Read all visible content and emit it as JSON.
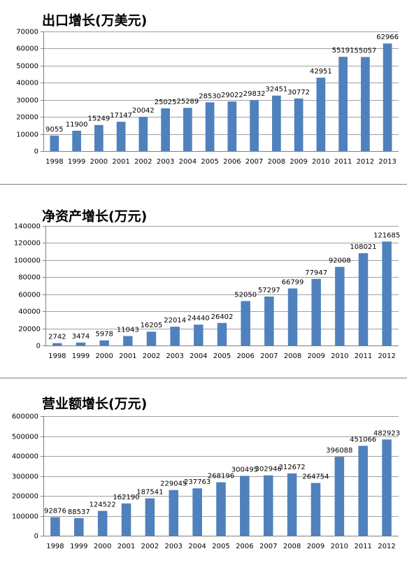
{
  "chart_data": [
    {
      "type": "bar",
      "title": "出口增长(万美元)",
      "color": "#4f81bd",
      "grid": true,
      "categories": [
        "1998",
        "1999",
        "2000",
        "2001",
        "2002",
        "2003",
        "2004",
        "2005",
        "2006",
        "2007",
        "2008",
        "2009",
        "2010",
        "2011",
        "2012",
        "2013"
      ],
      "values": [
        9055,
        11900,
        15249,
        17147,
        20042,
        25025,
        25289,
        28530,
        29022,
        29832,
        32451,
        30772,
        42951,
        55191,
        55057,
        62966
      ],
      "ylim": [
        0,
        70000
      ],
      "yticks": [
        0,
        10000,
        20000,
        30000,
        40000,
        50000,
        60000,
        70000
      ]
    },
    {
      "type": "bar",
      "title": "净资产增长(万元)",
      "color": "#4f81bd",
      "grid": true,
      "categories": [
        "1998",
        "1999",
        "2000",
        "2001",
        "2002",
        "2003",
        "2004",
        "2005",
        "2006",
        "2007",
        "2008",
        "2009",
        "2010",
        "2011",
        "2012"
      ],
      "values": [
        2742,
        3474,
        5978,
        11043,
        16205,
        22014,
        24440,
        26402,
        52050,
        57297,
        66799,
        77947,
        92008,
        108021,
        121685
      ],
      "ylim": [
        0,
        140000
      ],
      "yticks": [
        0,
        20000,
        40000,
        60000,
        80000,
        100000,
        120000,
        140000
      ]
    },
    {
      "type": "bar",
      "title": "营业额增长(万元)",
      "color": "#4f81bd",
      "grid": true,
      "categories": [
        "1998",
        "1999",
        "2000",
        "2001",
        "2002",
        "2003",
        "2004",
        "2005",
        "2006",
        "2007",
        "2008",
        "2009",
        "2010",
        "2011",
        "2012"
      ],
      "values": [
        92876,
        88537,
        124522,
        162190,
        187541,
        229045,
        237763,
        268196,
        300495,
        302946,
        312672,
        264754,
        396088,
        451066,
        482923
      ],
      "ylim": [
        0,
        600000
      ],
      "yticks": [
        0,
        100000,
        200000,
        300000,
        400000,
        500000,
        600000
      ]
    }
  ]
}
